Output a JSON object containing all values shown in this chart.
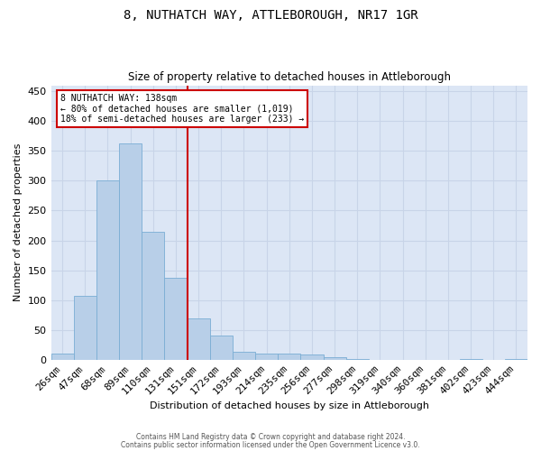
{
  "title": "8, NUTHATCH WAY, ATTLEBOROUGH, NR17 1GR",
  "subtitle": "Size of property relative to detached houses in Attleborough",
  "xlabel": "Distribution of detached houses by size in Attleborough",
  "ylabel": "Number of detached properties",
  "categories": [
    "26sqm",
    "47sqm",
    "68sqm",
    "89sqm",
    "110sqm",
    "131sqm",
    "151sqm",
    "172sqm",
    "193sqm",
    "214sqm",
    "235sqm",
    "256sqm",
    "277sqm",
    "298sqm",
    "319sqm",
    "340sqm",
    "360sqm",
    "381sqm",
    "402sqm",
    "423sqm",
    "444sqm"
  ],
  "values": [
    10,
    107,
    300,
    362,
    215,
    137,
    70,
    40,
    14,
    10,
    10,
    9,
    5,
    2,
    0,
    0,
    0,
    0,
    2,
    0,
    2
  ],
  "bar_color": "#b8cfe8",
  "bar_edge_color": "#7aadd4",
  "grid_color": "#c8d4e8",
  "background_color": "#dce6f5",
  "annotation_text_line1": "8 NUTHATCH WAY: 138sqm",
  "annotation_text_line2": "← 80% of detached houses are smaller (1,019)",
  "annotation_text_line3": "18% of semi-detached houses are larger (233) →",
  "vline_color": "#cc0000",
  "annotation_box_color": "#ffffff",
  "annotation_box_edge": "#cc0000",
  "ylim": [
    0,
    460
  ],
  "yticks": [
    0,
    50,
    100,
    150,
    200,
    250,
    300,
    350,
    400,
    450
  ],
  "footer1": "Contains HM Land Registry data © Crown copyright and database right 2024.",
  "footer2": "Contains public sector information licensed under the Open Government Licence v3.0.",
  "vline_x_index": 5.5
}
